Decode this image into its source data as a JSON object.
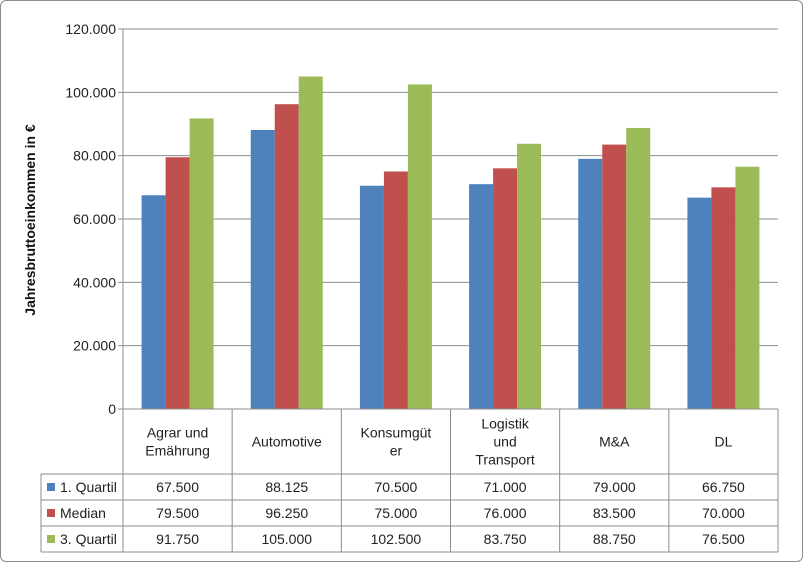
{
  "chart_data": {
    "type": "bar",
    "title": "",
    "xlabel": "",
    "ylabel": "Jahresbruttoeinkommen  in €",
    "ylim": [
      0,
      120000
    ],
    "y_ticks": [
      "0",
      "20.000",
      "40.000",
      "60.000",
      "80.000",
      "100.000",
      "120.000"
    ],
    "y_tick_values": [
      0,
      20000,
      40000,
      60000,
      80000,
      100000,
      120000
    ],
    "grid": true,
    "legend": "data-table",
    "categories": [
      [
        "Agrar und",
        "Emährung"
      ],
      [
        "Automotive"
      ],
      [
        "Konsumgüt",
        "er"
      ],
      [
        "Logistik",
        "und",
        "Transport"
      ],
      [
        "M&A"
      ],
      [
        "DL"
      ]
    ],
    "series": [
      {
        "name": "1. Quartil",
        "color": "#4f81bd",
        "values": [
          67500,
          88125,
          70500,
          71000,
          79000,
          66750
        ],
        "labels": [
          "67.500",
          "88.125",
          "70.500",
          "71.000",
          "79.000",
          "66.750"
        ]
      },
      {
        "name": "Median",
        "color": "#c0504d",
        "values": [
          79500,
          96250,
          75000,
          76000,
          83500,
          70000
        ],
        "labels": [
          "79.500",
          "96.250",
          "75.000",
          "76.000",
          "83.500",
          "70.000"
        ]
      },
      {
        "name": "3. Quartil",
        "color": "#9bbb59",
        "values": [
          91750,
          105000,
          102500,
          83750,
          88750,
          76500
        ],
        "labels": [
          "91.750",
          "105.000",
          "102.500",
          "83.750",
          "88.750",
          "76.500"
        ]
      }
    ]
  }
}
